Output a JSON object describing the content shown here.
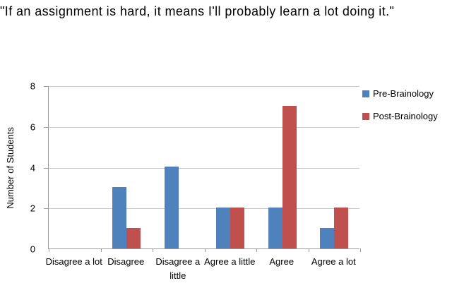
{
  "chart_data": {
    "type": "bar",
    "title": "\"If an assignment is hard, it means I'll probably learn a lot doing it.\"",
    "categories": [
      "Disagree a lot",
      "Disagree",
      "Disagree a little",
      "Agree a little",
      "Agree",
      "Agree a lot"
    ],
    "series": [
      {
        "name": "Pre-Brainology",
        "color": "#4F81BD",
        "values": [
          0,
          3,
          4,
          2,
          2,
          1
        ]
      },
      {
        "name": "Post-Brainology",
        "color": "#C0504D",
        "values": [
          0,
          1,
          0,
          2,
          7,
          2
        ]
      }
    ],
    "xlabel": "",
    "ylabel": "Number of Students",
    "ylim": [
      0,
      8
    ],
    "yticks": [
      0,
      2,
      4,
      6,
      8
    ],
    "grid": true,
    "legend_position": "right"
  },
  "colors": {
    "background": "#FFFFFF",
    "gridline": "#C9C9C9",
    "axis": "#9B9B9B",
    "text": "#000000"
  }
}
